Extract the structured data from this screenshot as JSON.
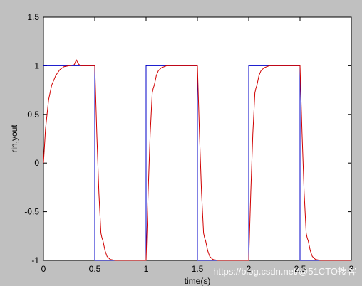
{
  "chart_data": {
    "type": "line",
    "xlabel": "time(s)",
    "ylabel": "rin,yout",
    "xlim": [
      0,
      3
    ],
    "ylim": [
      -1,
      1.5
    ],
    "x_ticks": [
      "0",
      "0.5",
      "1",
      "1.5",
      "2",
      "2.5",
      "3"
    ],
    "y_ticks": [
      "1.5",
      "1",
      "0.5",
      "0",
      "-0.5",
      "-1"
    ],
    "grid": false,
    "series": [
      {
        "color": "#0000c8",
        "x": [
          0,
          0.5,
          0.5,
          1,
          1,
          1.5,
          1.5,
          2,
          2,
          2.5,
          2.5,
          3
        ],
        "y": [
          1,
          1,
          -1,
          -1,
          1,
          1,
          -1,
          -1,
          1,
          1,
          -1,
          -1
        ]
      },
      {
        "color": "#d00000",
        "x": [
          0,
          0.02,
          0.05,
          0.08,
          0.12,
          0.16,
          0.2,
          0.25,
          0.3,
          0.32,
          0.34,
          0.36,
          0.4,
          0.45,
          0.5,
          0.52,
          0.54,
          0.56,
          0.57,
          0.58,
          0.6,
          0.62,
          0.65,
          0.7,
          0.8,
          0.9,
          1.0,
          1.02,
          1.04,
          1.06,
          1.07,
          1.08,
          1.1,
          1.12,
          1.15,
          1.2,
          1.25,
          1.3,
          1.4,
          1.5,
          1.52,
          1.54,
          1.56,
          1.57,
          1.58,
          1.6,
          1.62,
          1.65,
          1.7,
          1.8,
          1.9,
          2.0,
          2.02,
          2.04,
          2.06,
          2.07,
          2.08,
          2.1,
          2.12,
          2.15,
          2.2,
          2.25,
          2.3,
          2.4,
          2.5,
          2.52,
          2.54,
          2.56,
          2.57,
          2.58,
          2.6,
          2.62,
          2.65,
          2.7,
          2.8,
          2.9,
          3.0
        ],
        "y": [
          0,
          0.35,
          0.65,
          0.8,
          0.9,
          0.96,
          0.99,
          1.0,
          1.01,
          1.06,
          1.02,
          1.0,
          1.0,
          1.0,
          1.0,
          0.3,
          -0.3,
          -0.72,
          -0.77,
          -0.8,
          -0.9,
          -0.96,
          -0.99,
          -1.0,
          -1.0,
          -1.0,
          -1.0,
          -0.3,
          0.3,
          0.72,
          0.77,
          0.8,
          0.9,
          0.95,
          0.98,
          1.0,
          1.0,
          1.0,
          1.0,
          1.0,
          0.3,
          -0.3,
          -0.72,
          -0.77,
          -0.8,
          -0.9,
          -0.96,
          -0.99,
          -1.0,
          -1.0,
          -1.0,
          -1.0,
          -0.3,
          0.3,
          0.72,
          0.77,
          0.8,
          0.9,
          0.95,
          0.98,
          1.0,
          1.0,
          1.0,
          1.0,
          1.0,
          0.3,
          -0.3,
          -0.72,
          -0.77,
          -0.8,
          -0.9,
          -0.96,
          -0.99,
          -1.0,
          -1.0,
          -1.0,
          -1.0
        ]
      }
    ]
  },
  "watermark": "https://blog.csdn.net/@51CTO搜客"
}
